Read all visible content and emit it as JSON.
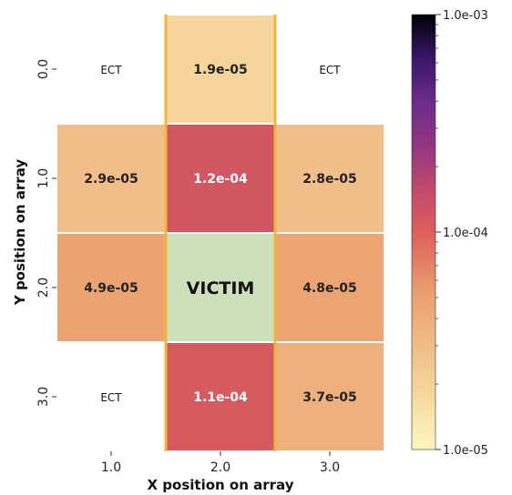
{
  "chart_data": {
    "type": "heatmap",
    "xlabel": "X position on array",
    "ylabel": "Y position on array",
    "x_categories": [
      "1.0",
      "2.0",
      "3.0"
    ],
    "y_categories": [
      "0.0",
      "1.0",
      "2.0",
      "3.0"
    ],
    "color_scale": "log",
    "colormap": "magma_r",
    "vmin": 1e-05,
    "vmax": 0.001,
    "colorbar_ticks": [
      "1.0e-03",
      "1.0e-04",
      "1.0e-05"
    ],
    "cells": [
      {
        "x": "1.0",
        "y": "0.0",
        "value": null,
        "label": "ECT"
      },
      {
        "x": "2.0",
        "y": "0.0",
        "value": 1.9e-05,
        "label": "1.9e-05"
      },
      {
        "x": "3.0",
        "y": "0.0",
        "value": null,
        "label": "ECT"
      },
      {
        "x": "1.0",
        "y": "1.0",
        "value": 2.9e-05,
        "label": "2.9e-05"
      },
      {
        "x": "2.0",
        "y": "1.0",
        "value": 0.00012,
        "label": "1.2e-04"
      },
      {
        "x": "3.0",
        "y": "1.0",
        "value": 2.8e-05,
        "label": "2.8e-05"
      },
      {
        "x": "1.0",
        "y": "2.0",
        "value": 4.9e-05,
        "label": "4.9e-05"
      },
      {
        "x": "2.0",
        "y": "2.0",
        "value": null,
        "label": "VICTIM"
      },
      {
        "x": "3.0",
        "y": "2.0",
        "value": 4.8e-05,
        "label": "4.8e-05"
      },
      {
        "x": "1.0",
        "y": "3.0",
        "value": null,
        "label": "ECT"
      },
      {
        "x": "2.0",
        "y": "3.0",
        "value": 0.00011,
        "label": "1.1e-04"
      },
      {
        "x": "3.0",
        "y": "3.0",
        "value": 3.7e-05,
        "label": "3.7e-05"
      }
    ],
    "highlight_column": "2.0",
    "highlight_color": "#f2b53a",
    "victim_color": "#cde0bb"
  }
}
